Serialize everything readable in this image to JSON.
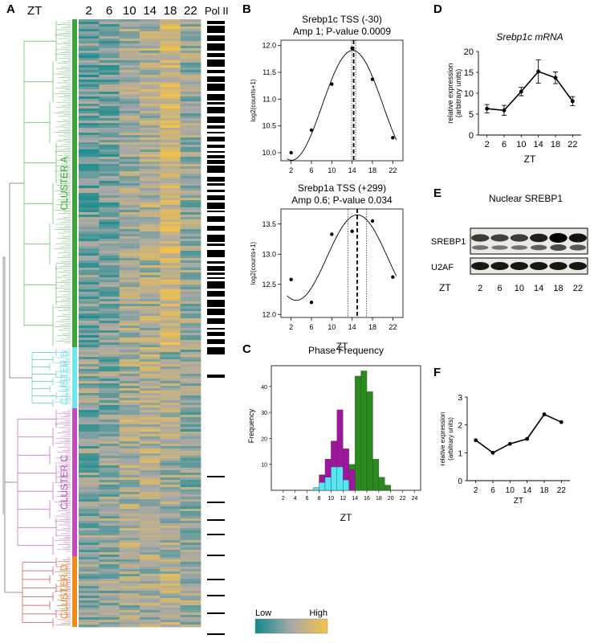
{
  "panels": {
    "A": "A",
    "B": "B",
    "C": "C",
    "D": "D",
    "E": "E",
    "F": "F"
  },
  "heatmap": {
    "zt_label": "ZT",
    "columns": [
      "2",
      "6",
      "10",
      "14",
      "18",
      "22"
    ],
    "polii_label": "Pol II",
    "clusters": [
      {
        "name": "CLUSTER A",
        "color": "#3aa535"
      },
      {
        "name": "CLUSTER B",
        "color": "#6ee6ee"
      },
      {
        "name": "CLUSTER C",
        "color": "#c24ac2"
      },
      {
        "name": "CLUSTER D",
        "color": "#f08a1c"
      }
    ],
    "dendro_colors": {
      "A": "#5bb85b",
      "B": "#55cccc",
      "C": "#c060c0",
      "D": "#d05050",
      "root": "#777777"
    },
    "colorbar": {
      "low": "Low",
      "high": "High",
      "low_color": "#0f8a8a",
      "mid_color": "#a8a8a8",
      "high_color": "#f2c24a"
    }
  },
  "chart_data": [
    {
      "type": "scatter",
      "title": "Srebp1c TSS (-30)",
      "subtitle": "Amp 1; P-value 0.0009",
      "ylabel": "log2(counts+1)",
      "xlabel": "",
      "x": [
        2,
        6,
        10,
        14,
        18,
        22
      ],
      "y": [
        10.0,
        10.42,
        11.28,
        11.95,
        11.37,
        10.28
      ],
      "xticks": [
        "2",
        "6",
        "10",
        "14",
        "18",
        "22"
      ],
      "yticks": [
        "10.0",
        "10.5",
        "11.0",
        "11.5",
        "12.0"
      ],
      "xlim": [
        0,
        24
      ],
      "ylim": [
        9.85,
        12.1
      ],
      "fit_peak": 14.1,
      "peak_line": 14.3,
      "ci_lines": [
        13.9,
        14.7
      ]
    },
    {
      "type": "scatter",
      "title": "Srebp1a TSS (+299)",
      "subtitle": "Amp 0.6; P-value 0.034",
      "ylabel": "log2(counts+1)",
      "xlabel": "ZT",
      "x": [
        2,
        6,
        10,
        14,
        18,
        22
      ],
      "y": [
        12.58,
        12.2,
        13.33,
        13.38,
        13.55,
        12.62
      ],
      "xticks": [
        "2",
        "6",
        "10",
        "14",
        "18",
        "22"
      ],
      "yticks": [
        "12.0",
        "12.5",
        "13.0",
        "13.5"
      ],
      "xlim": [
        0,
        24
      ],
      "ylim": [
        11.95,
        13.75
      ],
      "fit_peak": 15.0,
      "peak_line": 15.0,
      "ci_lines": [
        13.2,
        16.8
      ]
    },
    {
      "type": "bar",
      "title": "Phase Frequency",
      "xlabel": "ZT",
      "ylabel": "Frequency",
      "xticks": [
        "2",
        "4",
        "6",
        "8",
        "10",
        "12",
        "14",
        "16",
        "18",
        "20",
        "22",
        "24"
      ],
      "yticks": [
        "10",
        "20",
        "30",
        "40"
      ],
      "xlim": [
        0,
        25
      ],
      "ylim": [
        0,
        48
      ],
      "bin_width": 1,
      "series": [
        {
          "color": "#2a8a1e",
          "bins": [
            [
              13,
              14,
              10
            ],
            [
              14,
              15,
              44
            ],
            [
              15,
              16,
              46
            ],
            [
              16,
              17,
              38
            ],
            [
              17,
              18,
              12
            ],
            [
              18,
              19,
              5
            ],
            [
              19,
              20,
              2
            ]
          ]
        },
        {
          "color": "#a0159e",
          "bins": [
            [
              7,
              8,
              1
            ],
            [
              8,
              9,
              6
            ],
            [
              9,
              10,
              12
            ],
            [
              10,
              11,
              19
            ],
            [
              11,
              12,
              31
            ],
            [
              12,
              13,
              16
            ],
            [
              13,
              14,
              8
            ]
          ]
        },
        {
          "color": "#55e6f2",
          "bins": [
            [
              7,
              8,
              1
            ],
            [
              8,
              9,
              3
            ],
            [
              9,
              10,
              5
            ],
            [
              10,
              11,
              9
            ],
            [
              11,
              12,
              9
            ],
            [
              12,
              13,
              4
            ]
          ]
        }
      ]
    },
    {
      "type": "line",
      "title": "Srebp1c mRNA",
      "xlabel": "ZT",
      "ylabel": "relative expression",
      "ylabel2": "(arbitrary units)",
      "x": [
        2,
        6,
        10,
        14,
        18,
        22
      ],
      "y": [
        6.3,
        5.9,
        10.4,
        15.2,
        13.7,
        8.1
      ],
      "err": [
        1.0,
        1.2,
        1.0,
        2.8,
        1.4,
        1.1
      ],
      "xticks": [
        "2",
        "6",
        "10",
        "14",
        "18",
        "22"
      ],
      "yticks": [
        "0",
        "5",
        "10",
        "15",
        "20"
      ],
      "xlim": [
        0,
        24
      ],
      "ylim": [
        0,
        20
      ]
    },
    {
      "type": "line",
      "title": "",
      "xlabel": "ZT",
      "ylabel": "relative expression",
      "ylabel2": "(arbitrary units)",
      "x": [
        2,
        6,
        10,
        14,
        18,
        22
      ],
      "y": [
        1.45,
        1.0,
        1.32,
        1.5,
        2.38,
        2.1
      ],
      "xticks": [
        "2",
        "6",
        "10",
        "14",
        "18",
        "22"
      ],
      "yticks": [
        "0",
        "1",
        "2",
        "3"
      ],
      "xlim": [
        0,
        24
      ],
      "ylim": [
        0,
        3
      ]
    }
  ],
  "blot": {
    "title": "Nuclear SREBP1",
    "rows": [
      "SREBP1",
      "U2AF"
    ],
    "zt_label": "ZT",
    "lanes": [
      "2",
      "6",
      "10",
      "14",
      "18",
      "22"
    ]
  }
}
